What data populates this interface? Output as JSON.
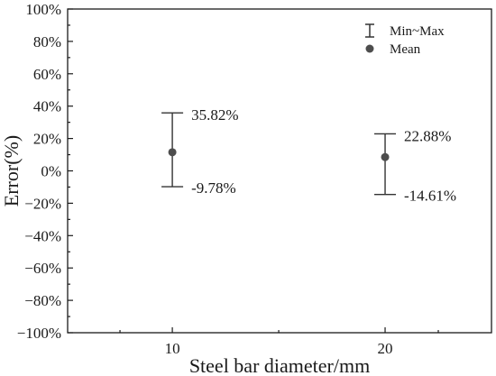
{
  "chart_data": {
    "type": "scatter",
    "title": "",
    "xlabel": "Steel bar diameter/mm",
    "ylabel": "Error(%)",
    "x_tick_labels": [
      "10",
      "20"
    ],
    "y_tick_labels": [
      "100%",
      "80%",
      "60%",
      "40%",
      "20%",
      "0%",
      "−20%",
      "−40%",
      "−60%",
      "−80%",
      "−100%"
    ],
    "ylim": [
      -100,
      100
    ],
    "y_unit": "%",
    "legend": {
      "placement": "top-right",
      "range_label": "Min~Max",
      "mean_label": "Mean"
    },
    "series": [
      {
        "x": [
          10,
          20
        ],
        "mean": [
          11.5,
          8.5
        ],
        "max": [
          35.82,
          22.88
        ],
        "min": [
          -9.78,
          -14.61
        ],
        "max_labels": [
          "35.82%",
          "22.88%"
        ],
        "min_labels": [
          "-9.78%",
          "-14.61%"
        ]
      }
    ],
    "colors": {
      "errorbar": "#333333",
      "marker": "#4d4d4d",
      "axis": "#1a1a1a"
    },
    "grid": false
  }
}
